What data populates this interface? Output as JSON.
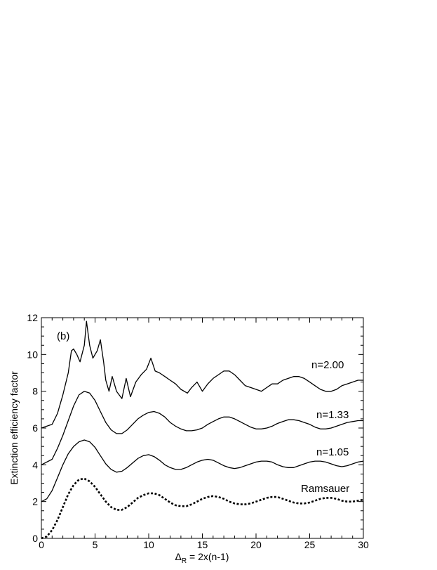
{
  "chart_data": {
    "type": "line",
    "panel_label": "(b)",
    "xlabel_delta": "Δ",
    "xlabel_sub": "R",
    "xlabel_rest": " = 2x(n-1)",
    "ylabel": "Extinction efficiency factor",
    "xlim": [
      0,
      30
    ],
    "ylim": [
      0,
      12
    ],
    "x_ticks": [
      0,
      5,
      10,
      15,
      20,
      25,
      30
    ],
    "y_ticks": [
      0,
      2,
      4,
      6,
      8,
      10,
      12
    ],
    "legend": "none",
    "grid": false,
    "series": [
      {
        "name": "n=2.00",
        "offset": 6,
        "style": "solid-with-dotted-spikes",
        "x": [
          0,
          1,
          1.5,
          2,
          2.5,
          2.8,
          3,
          3.3,
          3.6,
          4,
          4.2,
          4.5,
          4.8,
          5.2,
          5.5,
          5.8,
          6,
          6.3,
          6.6,
          7,
          7.5,
          7.9,
          8.3,
          8.8,
          9.3,
          9.8,
          10.2,
          10.6,
          11,
          11.5,
          12,
          12.5,
          13,
          13.6,
          14,
          14.5,
          15,
          15.5,
          16,
          16.5,
          17,
          17.5,
          18,
          18.5,
          19,
          19.5,
          20,
          20.5,
          21,
          21.5,
          22,
          22.5,
          23,
          23.5,
          24,
          24.5,
          25,
          25.5,
          26,
          26.5,
          27,
          27.5,
          28,
          28.5,
          29,
          29.5,
          30
        ],
        "y": [
          6.0,
          6.2,
          6.8,
          7.8,
          9.0,
          10.2,
          10.3,
          10.0,
          9.6,
          10.5,
          11.8,
          10.5,
          9.8,
          10.2,
          10.8,
          9.6,
          8.6,
          8.0,
          8.8,
          8.0,
          7.6,
          8.7,
          7.7,
          8.5,
          8.9,
          9.2,
          9.8,
          9.1,
          9.0,
          8.8,
          8.6,
          8.4,
          8.1,
          7.9,
          8.2,
          8.5,
          8.0,
          8.4,
          8.7,
          8.9,
          9.1,
          9.1,
          8.9,
          8.6,
          8.3,
          8.2,
          8.1,
          8.0,
          8.2,
          8.4,
          8.4,
          8.6,
          8.7,
          8.8,
          8.8,
          8.7,
          8.5,
          8.3,
          8.1,
          8.0,
          8.0,
          8.1,
          8.3,
          8.4,
          8.5,
          8.6,
          8.6
        ]
      },
      {
        "name": "n=1.33",
        "offset": 4,
        "style": "solid",
        "x": [
          0,
          1,
          1.5,
          2,
          2.5,
          3,
          3.5,
          4,
          4.5,
          5,
          5.5,
          6,
          6.5,
          7,
          7.5,
          8,
          8.5,
          9,
          9.5,
          10,
          10.5,
          11,
          11.5,
          12,
          12.5,
          13,
          13.5,
          14,
          14.5,
          15,
          15.5,
          16,
          16.5,
          17,
          17.5,
          18,
          18.5,
          19,
          19.5,
          20,
          20.5,
          21,
          21.5,
          22,
          22.5,
          23,
          23.5,
          24,
          24.5,
          25,
          25.5,
          26,
          26.5,
          27,
          27.5,
          28,
          28.5,
          29,
          29.5,
          30
        ],
        "y": [
          4.0,
          4.3,
          4.9,
          5.6,
          6.4,
          7.2,
          7.8,
          8.0,
          7.9,
          7.5,
          6.9,
          6.3,
          5.9,
          5.7,
          5.7,
          5.9,
          6.2,
          6.5,
          6.7,
          6.85,
          6.9,
          6.8,
          6.6,
          6.3,
          6.1,
          5.95,
          5.85,
          5.85,
          5.9,
          6.0,
          6.2,
          6.35,
          6.5,
          6.6,
          6.6,
          6.5,
          6.35,
          6.2,
          6.05,
          5.95,
          5.95,
          6.0,
          6.1,
          6.25,
          6.35,
          6.45,
          6.45,
          6.4,
          6.3,
          6.2,
          6.05,
          5.95,
          5.95,
          6.0,
          6.1,
          6.2,
          6.3,
          6.35,
          6.4,
          6.4
        ]
      },
      {
        "name": "n=1.05",
        "offset": 2,
        "style": "solid",
        "x": [
          0,
          0.5,
          1,
          1.5,
          2,
          2.5,
          3,
          3.5,
          4,
          4.5,
          5,
          5.5,
          6,
          6.5,
          7,
          7.5,
          8,
          8.5,
          9,
          9.5,
          10,
          10.5,
          11,
          11.5,
          12,
          12.5,
          13,
          13.5,
          14,
          14.5,
          15,
          15.5,
          16,
          16.5,
          17,
          17.5,
          18,
          18.5,
          19,
          19.5,
          20,
          20.5,
          21,
          21.5,
          22,
          22.5,
          23,
          23.5,
          24,
          24.5,
          25,
          25.5,
          26,
          26.5,
          27,
          27.5,
          28,
          28.5,
          29,
          29.5,
          30
        ],
        "y": [
          2.0,
          2.15,
          2.6,
          3.3,
          4.0,
          4.6,
          5.0,
          5.25,
          5.35,
          5.25,
          4.95,
          4.5,
          4.05,
          3.75,
          3.6,
          3.65,
          3.85,
          4.1,
          4.35,
          4.5,
          4.55,
          4.45,
          4.25,
          4.0,
          3.85,
          3.75,
          3.75,
          3.85,
          4.0,
          4.15,
          4.25,
          4.3,
          4.25,
          4.1,
          3.95,
          3.85,
          3.8,
          3.85,
          3.95,
          4.05,
          4.15,
          4.2,
          4.2,
          4.15,
          4.0,
          3.9,
          3.85,
          3.85,
          3.95,
          4.05,
          4.15,
          4.2,
          4.2,
          4.15,
          4.05,
          3.95,
          3.9,
          3.95,
          4.05,
          4.15,
          4.2
        ]
      },
      {
        "name": "Ramsauer",
        "offset": 0,
        "style": "dotted",
        "x": [
          0,
          0.5,
          1,
          1.5,
          2,
          2.5,
          3,
          3.5,
          4,
          4.5,
          5,
          5.5,
          6,
          6.5,
          7,
          7.5,
          8,
          8.5,
          9,
          9.5,
          10,
          10.5,
          11,
          11.5,
          12,
          12.5,
          13,
          13.5,
          14,
          14.5,
          15,
          15.5,
          16,
          16.5,
          17,
          17.5,
          18,
          18.5,
          19,
          19.5,
          20,
          20.5,
          21,
          21.5,
          22,
          22.5,
          23,
          23.5,
          24,
          24.5,
          25,
          25.5,
          26,
          26.5,
          27,
          27.5,
          28,
          28.5,
          29,
          29.5,
          30
        ],
        "y": [
          0.0,
          0.1,
          0.45,
          1.0,
          1.7,
          2.4,
          2.9,
          3.2,
          3.25,
          3.1,
          2.8,
          2.4,
          2.0,
          1.7,
          1.55,
          1.55,
          1.7,
          1.95,
          2.2,
          2.35,
          2.45,
          2.45,
          2.35,
          2.15,
          1.95,
          1.8,
          1.75,
          1.75,
          1.85,
          2.0,
          2.15,
          2.25,
          2.3,
          2.25,
          2.15,
          2.0,
          1.9,
          1.85,
          1.85,
          1.9,
          2.0,
          2.1,
          2.2,
          2.25,
          2.25,
          2.15,
          2.05,
          1.95,
          1.9,
          1.9,
          1.95,
          2.05,
          2.15,
          2.2,
          2.2,
          2.15,
          2.05,
          2.0,
          2.0,
          2.05,
          2.1
        ]
      }
    ]
  }
}
